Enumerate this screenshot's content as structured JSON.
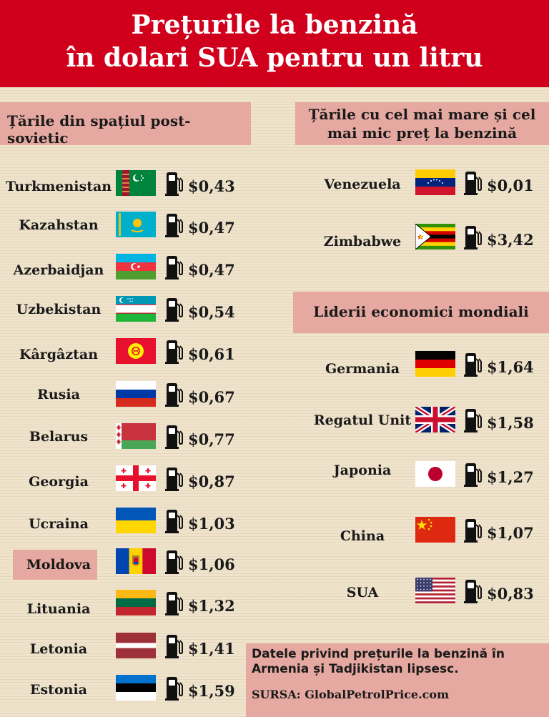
{
  "header": {
    "title_line1": "Prețurile la benzină",
    "title_line2": "în dolari SUA pentru un litru"
  },
  "sections": {
    "post_soviet": "Țările din spațiul post-sovietic",
    "extremes_line1": "Țările cu cel mai mare și cel",
    "extremes_line2": "mai mic preț la benzină",
    "leaders": "Liderii economici mondiali"
  },
  "note": {
    "line1": "Datele privind prețurile la benzină în",
    "line2": "Armenia și Tadjikistan lipsesc.",
    "source": "SURSA: GlobalPetrolPrice.com"
  },
  "icons": {
    "fuel": "fuel-pump-icon"
  },
  "colors": {
    "banner": "#d0001c",
    "section": "#e6a9a1",
    "background": "#efe3cc"
  },
  "chart_data": {
    "type": "table",
    "title": "Prețurile la benzină în dolari SUA pentru un litru",
    "currency": "USD",
    "groups": [
      {
        "name": "Țările din spațiul post-sovietic",
        "rows": [
          {
            "country": "Turkmenistan",
            "price": 0.43,
            "label": "$0,43"
          },
          {
            "country": "Kazahstan",
            "price": 0.47,
            "label": "$0,47"
          },
          {
            "country": "Azerbaidjan",
            "price": 0.47,
            "label": "$0,47"
          },
          {
            "country": "Uzbekistan",
            "price": 0.54,
            "label": "$0,54"
          },
          {
            "country": "Kârgâztan",
            "price": 0.61,
            "label": "$0,61"
          },
          {
            "country": "Rusia",
            "price": 0.67,
            "label": "$0,67"
          },
          {
            "country": "Belarus",
            "price": 0.77,
            "label": "$0,77"
          },
          {
            "country": "Georgia",
            "price": 0.87,
            "label": "$0,87"
          },
          {
            "country": "Ucraina",
            "price": 1.03,
            "label": "$1,03"
          },
          {
            "country": "Moldova",
            "price": 1.06,
            "label": "$1,06",
            "highlight": true
          },
          {
            "country": "Lituania",
            "price": 1.32,
            "label": "$1,32"
          },
          {
            "country": "Letonia",
            "price": 1.41,
            "label": "$1,41"
          },
          {
            "country": "Estonia",
            "price": 1.59,
            "label": "$1,59"
          }
        ]
      },
      {
        "name": "Țările cu cel mai mare și cel mai mic preț la benzină",
        "rows": [
          {
            "country": "Venezuela",
            "price": 0.01,
            "label": "$0,01"
          },
          {
            "country": "Zimbabwe",
            "price": 3.42,
            "label": "$3,42"
          }
        ]
      },
      {
        "name": "Liderii economici mondiali",
        "rows": [
          {
            "country": "Germania",
            "price": 1.64,
            "label": "$1,64"
          },
          {
            "country": "Regatul Unit",
            "price": 1.58,
            "label": "$1,58"
          },
          {
            "country": "Japonia",
            "price": 1.27,
            "label": "$1,27"
          },
          {
            "country": "China",
            "price": 1.07,
            "label": "$1,07"
          },
          {
            "country": "SUA",
            "price": 0.83,
            "label": "$0,83"
          }
        ]
      }
    ]
  }
}
